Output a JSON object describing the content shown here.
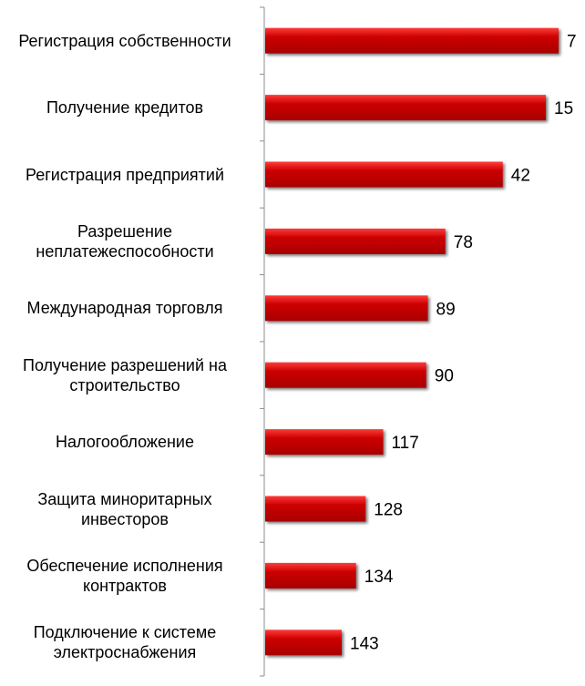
{
  "chart_data": {
    "type": "bar",
    "orientation": "horizontal",
    "categories": [
      "Регистрация собственности",
      "Получение кредитов",
      "Регистрация предприятий",
      "Разрешение неплатежеспособности",
      "Международная торговля",
      "Получение разрешений на строительство",
      "Налогообложение",
      "Защита миноритарных инвесторов",
      "Обеспечение исполнения контрактов",
      "Подключение к системе электроснабжения"
    ],
    "values": [
      7,
      15,
      42,
      78,
      89,
      90,
      117,
      128,
      134,
      143
    ],
    "data_labels": [
      "7",
      "15",
      "42",
      "78",
      "89",
      "90",
      "117",
      "128",
      "134",
      "143"
    ],
    "bar_color": "#cc0000",
    "bar_highlight": "#ff3b3b",
    "bar_shadow": "#6e0000",
    "axis_color": "#8c8c8c",
    "xlim": [
      0,
      200
    ],
    "grid": false,
    "legend": "none"
  }
}
